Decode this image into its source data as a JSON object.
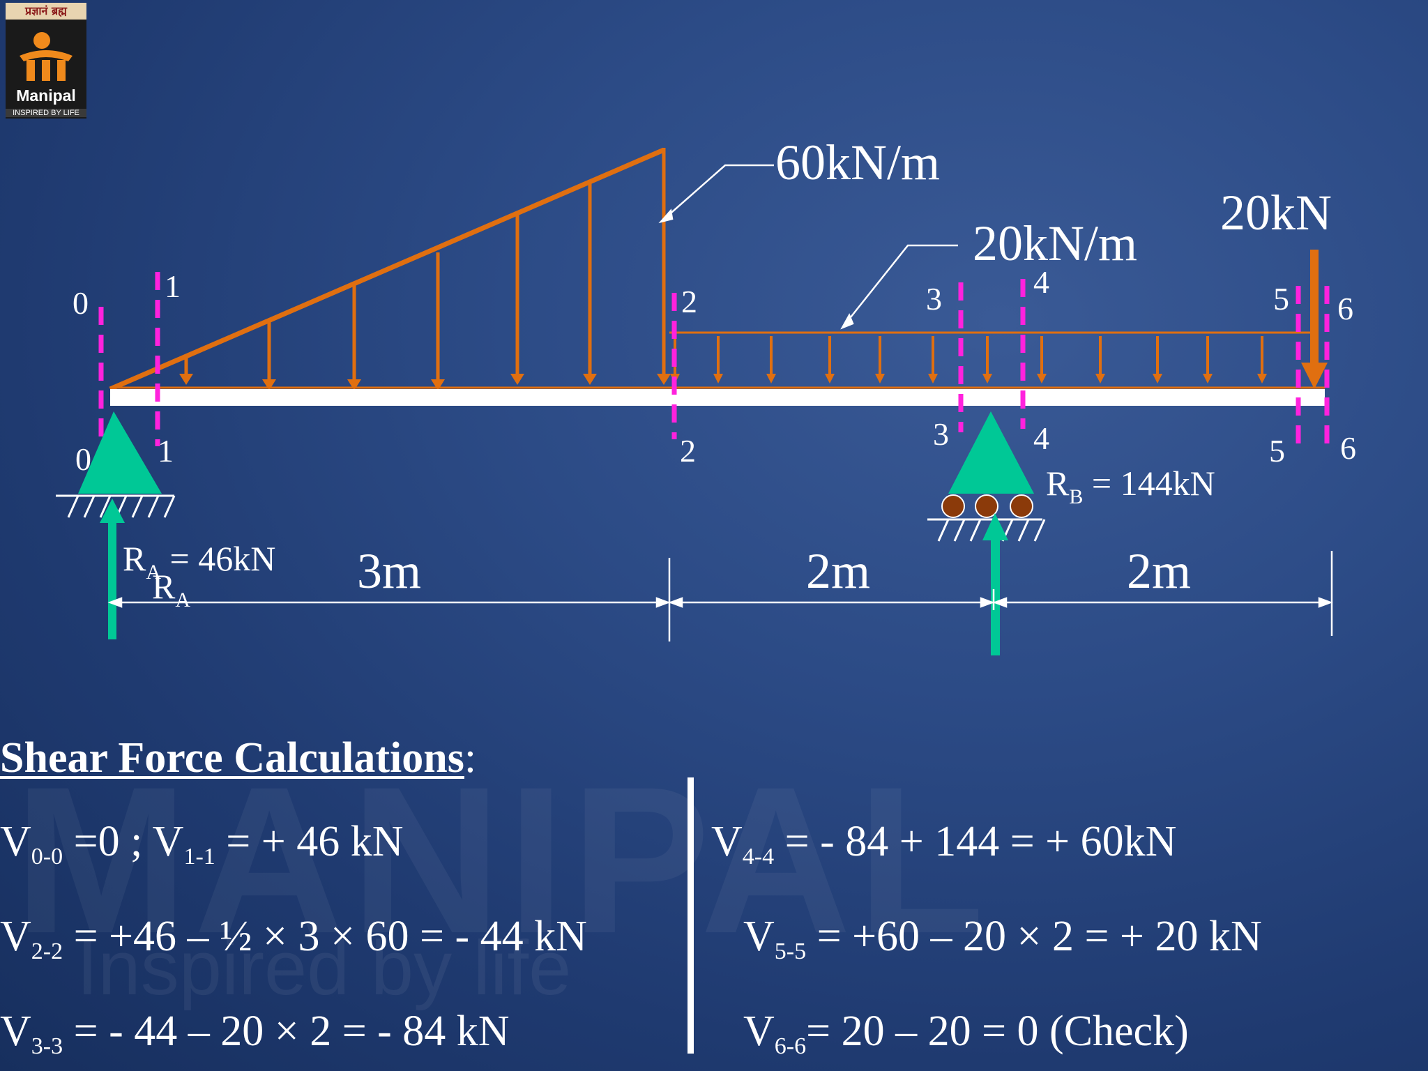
{
  "logo": {
    "top_text": "प्रज्ञानं ब्रह्म",
    "name": "Manipal",
    "tagline": "INSPIRED BY LIFE"
  },
  "watermark": {
    "word": "MANIPAL",
    "tagline": "Inspired by life"
  },
  "loads": {
    "uvl_peak": "60kN/m",
    "udl": "20kN/m",
    "point": "20kN"
  },
  "reactions": {
    "ra_value": "= 46kN",
    "ra_letter": "R",
    "ra_sub": "A",
    "rb_letter": "R",
    "rb_sub": "B",
    "rb_value": "= 144kN"
  },
  "spans": [
    "3m",
    "2m",
    "2m"
  ],
  "sections": {
    "top": [
      "0",
      "1",
      "2",
      "3",
      "4",
      "5",
      "6"
    ],
    "bottom": [
      "0",
      "1",
      "2",
      "3",
      "4",
      "5",
      "6"
    ]
  },
  "heading": {
    "title": "Shear Force Calculations",
    "colon": ":"
  },
  "equations": {
    "left": [
      {
        "p1": "V",
        "s1": "0-0",
        "p2": " =0 ; V",
        "s2": "1-1",
        "p3": " =  + 46 kN"
      },
      {
        "p1": "V",
        "s1": "2-2",
        "p2": " = +46 – ½ × 3 × 60 = - 44 kN"
      },
      {
        "p1": "V",
        "s1": "3-3",
        "p2": " = - 44 – 20 × 2 = - 84 kN"
      }
    ],
    "right": [
      {
        "p1": "V",
        "s1": "4-4",
        "p2": " = - 84 + 144 = + 60kN"
      },
      {
        "p1": "V",
        "s1": "5-5",
        "p2": " = +60 – 20 × 2 = + 20 kN"
      },
      {
        "p1": "V",
        "s1": "6-6",
        "p2": "= 20 – 20 = 0 (Check)"
      }
    ]
  },
  "colors": {
    "load": "#e06f10",
    "section": "#ff22dd",
    "support": "#00c896",
    "beam": "#ffffff",
    "roller": "#8b3a0a",
    "background": "#2c4b86"
  }
}
